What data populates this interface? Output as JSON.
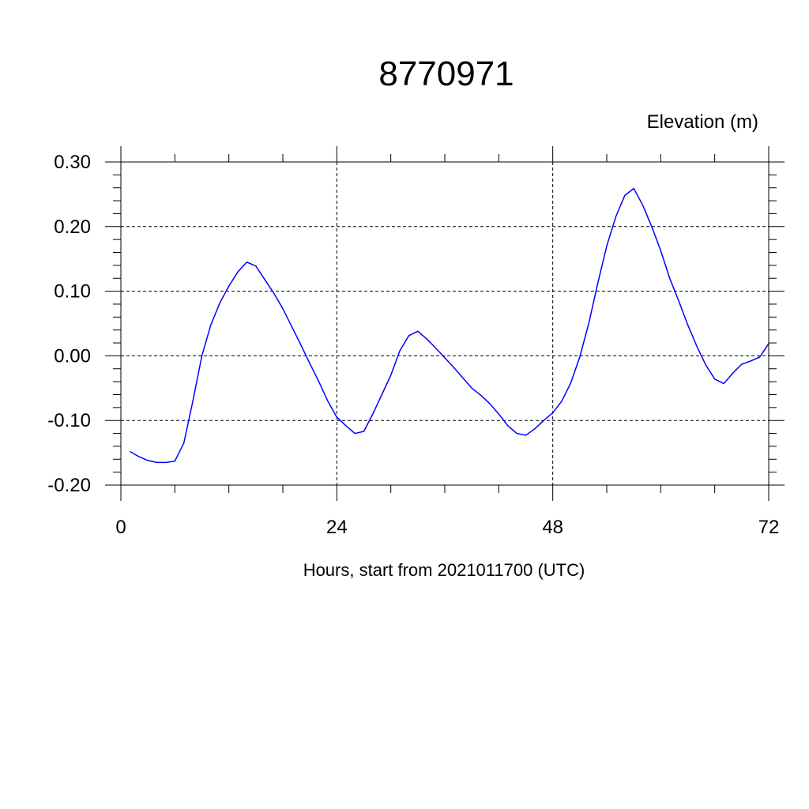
{
  "chart_data": {
    "type": "line",
    "title": "8770971",
    "ylabel": "Elevation (m)",
    "xlabel": "Hours, start from 2021011700 (UTC)",
    "xlim": [
      0,
      72
    ],
    "ylim": [
      -0.2,
      0.3
    ],
    "x_ticks": [
      0,
      24,
      48,
      72
    ],
    "x_tick_labels": [
      "0",
      "24",
      "48",
      "72"
    ],
    "y_ticks": [
      -0.2,
      -0.1,
      0.0,
      0.1,
      0.2,
      0.3
    ],
    "y_tick_labels": [
      "-0.20",
      "-0.10",
      "0.00",
      "0.10",
      "0.20",
      "0.30"
    ],
    "grid": true,
    "series": [
      {
        "color": "#0000ff",
        "x": [
          1,
          2,
          3,
          4,
          5,
          6,
          7,
          8,
          9,
          10,
          11,
          12,
          13,
          14,
          15,
          16,
          17,
          18,
          19,
          20,
          21,
          22,
          23,
          24,
          25,
          26,
          27,
          28,
          29,
          30,
          31,
          32,
          33,
          34,
          35,
          36,
          37,
          38,
          39,
          40,
          41,
          42,
          43,
          44,
          45,
          46,
          47,
          48,
          49,
          50,
          51,
          52,
          53,
          54,
          55,
          56,
          57,
          58,
          59,
          60,
          61,
          62,
          63,
          64,
          65,
          66,
          67,
          68,
          69,
          70,
          71,
          72
        ],
        "y": [
          -0.148,
          -0.156,
          -0.162,
          -0.165,
          -0.165,
          -0.163,
          -0.135,
          -0.07,
          0.0,
          0.048,
          0.082,
          0.108,
          0.13,
          0.145,
          0.139,
          0.118,
          0.097,
          0.073,
          0.045,
          0.017,
          -0.012,
          -0.04,
          -0.07,
          -0.095,
          -0.108,
          -0.12,
          -0.117,
          -0.09,
          -0.06,
          -0.03,
          0.008,
          0.031,
          0.038,
          0.026,
          0.012,
          -0.003,
          -0.018,
          -0.034,
          -0.05,
          -0.061,
          -0.074,
          -0.09,
          -0.108,
          -0.12,
          -0.123,
          -0.113,
          -0.1,
          -0.088,
          -0.07,
          -0.042,
          -0.002,
          0.05,
          0.112,
          0.17,
          0.215,
          0.248,
          0.259,
          0.233,
          0.2,
          0.163,
          0.12,
          0.085,
          0.048,
          0.015,
          -0.014,
          -0.036,
          -0.043,
          -0.027,
          -0.013,
          -0.008,
          -0.002,
          0.019
        ]
      }
    ]
  }
}
